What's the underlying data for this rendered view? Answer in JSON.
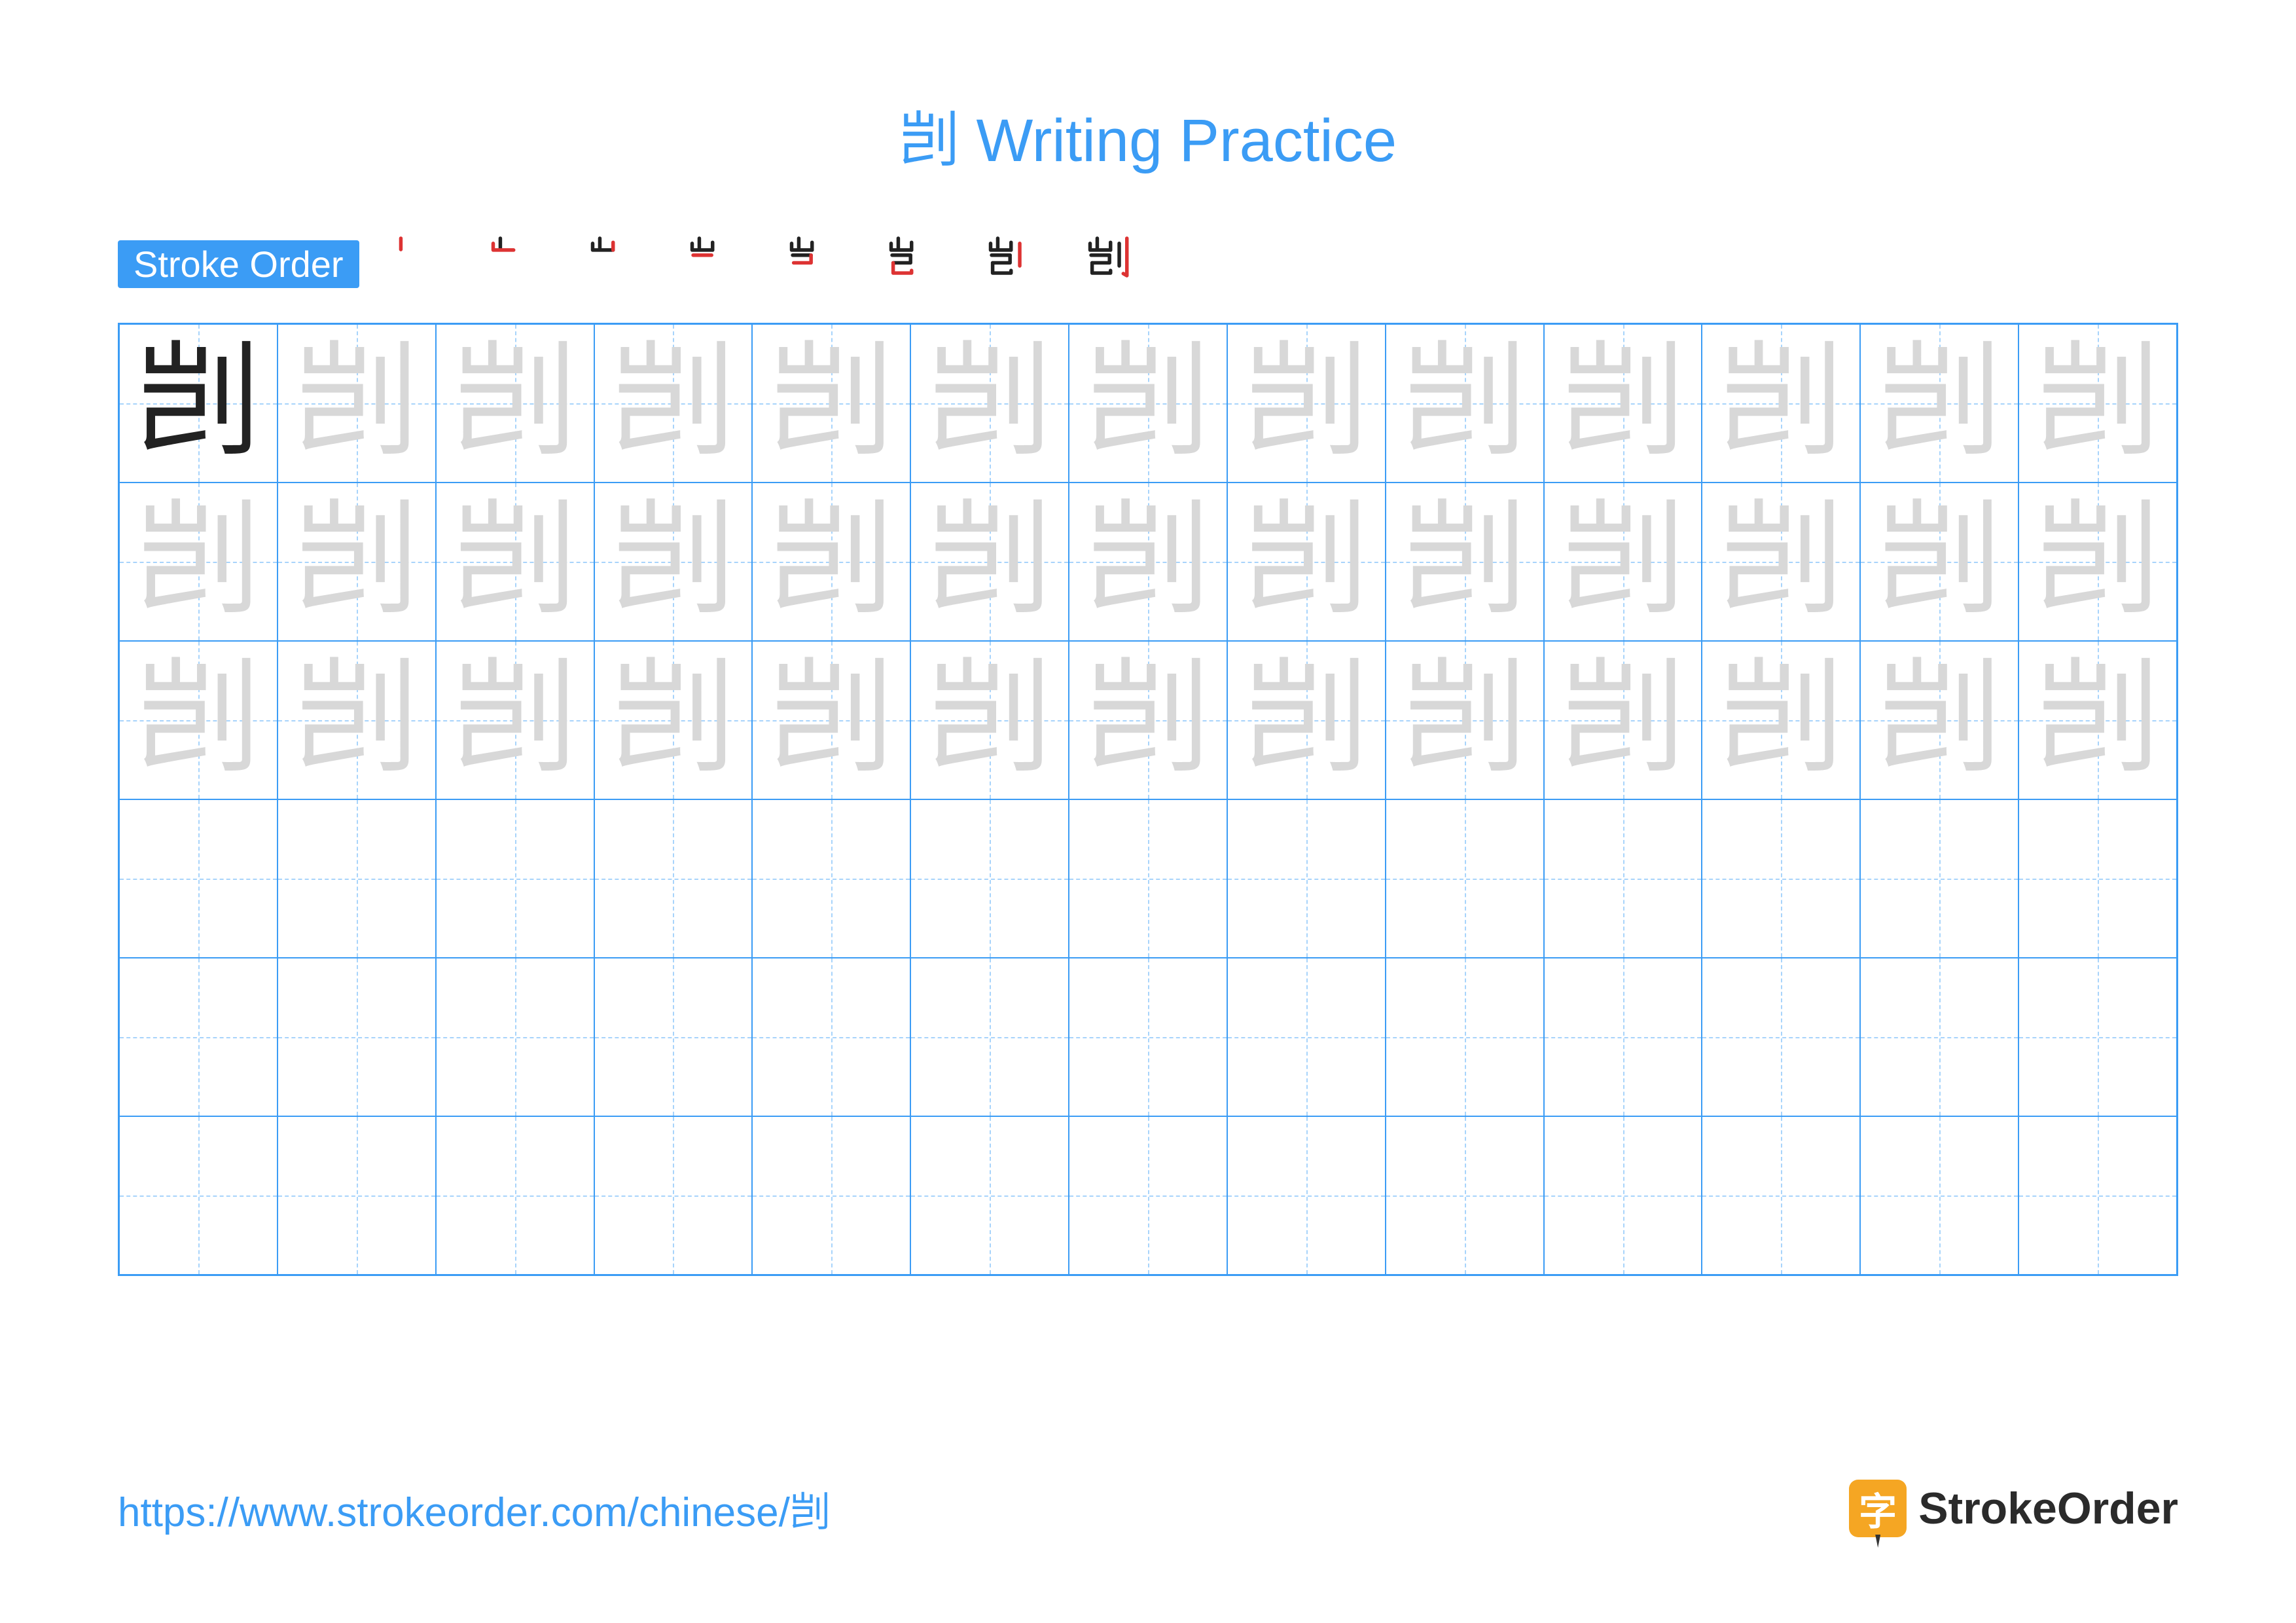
{
  "title": "剀 Writing Practice",
  "strokeOrder": {
    "label": "Stroke Order",
    "character": "剀",
    "stepCount": 8
  },
  "grid": {
    "rows": 6,
    "cols": 13,
    "character": "剀",
    "solidCharColor": "#222222",
    "traceCharColor": "#d8d8d8",
    "borderColor": "#3b9cf5",
    "guideColor": "#a8d4fb",
    "traceRows": 3
  },
  "footer": {
    "url": "https://www.strokeorder.com/chinese/剀",
    "logoChar": "字",
    "logoText": "StrokeOrder"
  },
  "colors": {
    "accent": "#3b9cf5",
    "logoBg": "#f5a623",
    "text": "#2b2b2b",
    "background": "#ffffff"
  }
}
